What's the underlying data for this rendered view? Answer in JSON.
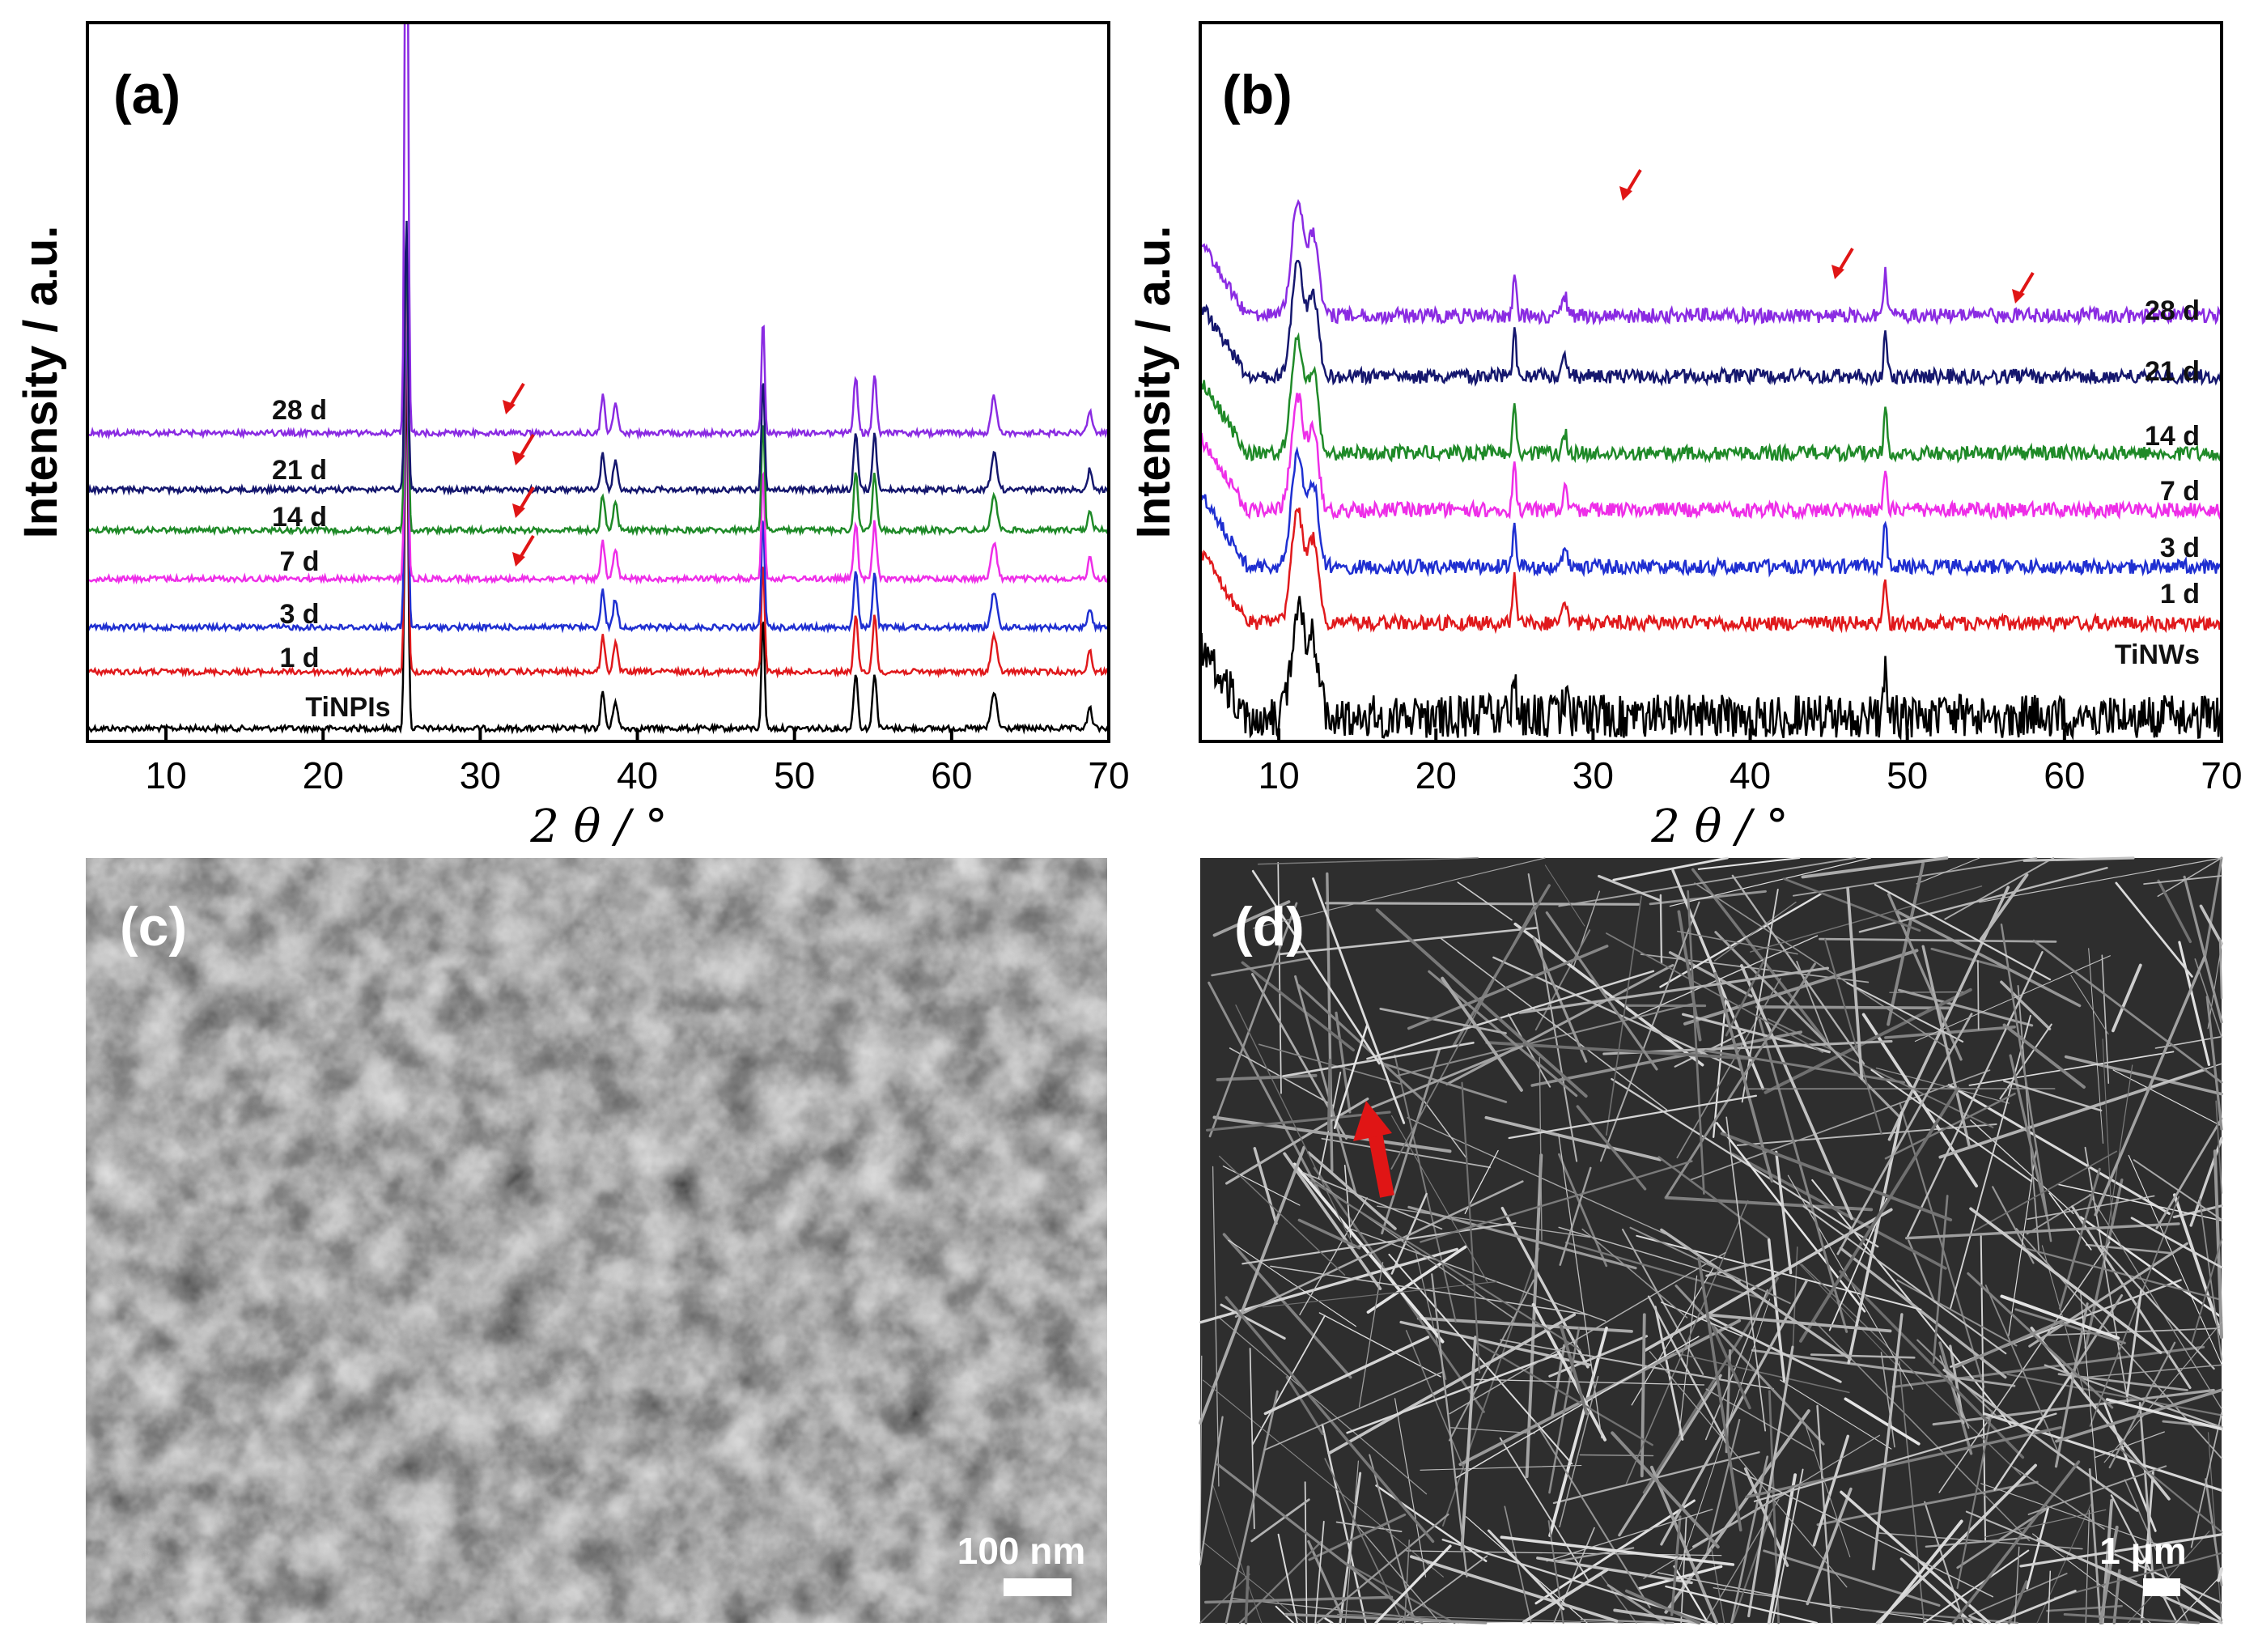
{
  "chart_data": [
    {
      "panel": "(a)",
      "type": "line",
      "xlabel": "2 θ / °",
      "ylabel": "Intensity / a.u.",
      "xlim": [
        5,
        70
      ],
      "xticks": [
        10,
        20,
        30,
        40,
        50,
        60,
        70
      ],
      "grid": false,
      "series": [
        {
          "name": "TiNPIs",
          "color": "#000000"
        },
        {
          "name": "1 d",
          "color": "#e0191c"
        },
        {
          "name": "3 d",
          "color": "#1f2fd1"
        },
        {
          "name": "7 d",
          "color": "#ee2ee8"
        },
        {
          "name": "14 d",
          "color": "#1f8a28"
        },
        {
          "name": "21 d",
          "color": "#15176e"
        },
        {
          "name": "28 d",
          "color": "#8a2be2"
        }
      ],
      "peaks_2theta": [
        25.3,
        37.8,
        38.6,
        48.0,
        53.9,
        55.1,
        62.7,
        68.8
      ],
      "arrow_marks_2theta": [
        31.8
      ]
    },
    {
      "panel": "(b)",
      "type": "line",
      "xlabel": "2 θ / °",
      "ylabel": "Intensity / a.u.",
      "xlim": [
        5,
        70
      ],
      "xticks": [
        10,
        20,
        30,
        40,
        50,
        60,
        70
      ],
      "grid": false,
      "series": [
        {
          "name": "TiNWs",
          "color": "#000000"
        },
        {
          "name": "1 d",
          "color": "#e0191c"
        },
        {
          "name": "3 d",
          "color": "#1f2fd1"
        },
        {
          "name": "7 d",
          "color": "#ee2ee8"
        },
        {
          "name": "14 d",
          "color": "#1f8a28"
        },
        {
          "name": "21 d",
          "color": "#15176e"
        },
        {
          "name": "28 d",
          "color": "#8a2be2"
        }
      ],
      "peaks_2theta": [
        11.2,
        12.2,
        25.0,
        28.2,
        48.6
      ],
      "arrow_marks_2theta": [
        31.7,
        45.5,
        56.5
      ]
    }
  ],
  "images": [
    {
      "panel": "(c)",
      "scale_bar": "100 nm"
    },
    {
      "panel": "(d)",
      "scale_bar": "1 μm"
    }
  ],
  "colors": {
    "arrow": "#e01515",
    "axis": "#000000"
  }
}
